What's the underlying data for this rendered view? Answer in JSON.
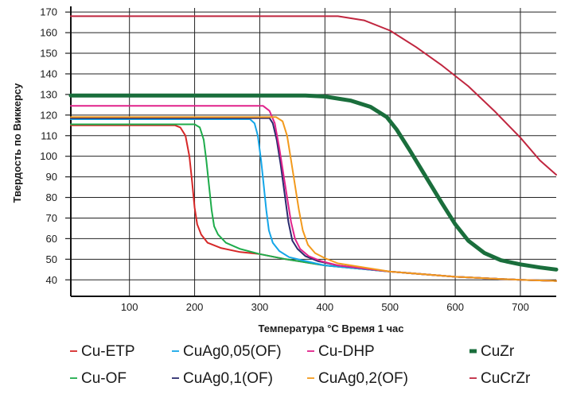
{
  "chart_data": {
    "type": "line",
    "title": "",
    "xlabel": "Температура °C Время 1 час",
    "ylabel": "Твердость по Виккерсу",
    "xlim": [
      10,
      755
    ],
    "ylim": [
      32,
      172
    ],
    "xticks": [
      100,
      200,
      300,
      400,
      500,
      600,
      700
    ],
    "yticks": [
      40,
      50,
      60,
      70,
      80,
      90,
      100,
      110,
      120,
      130,
      140,
      150,
      160,
      170
    ],
    "grid": true,
    "legend_position": "bottom",
    "series": [
      {
        "name": "Cu-ETP",
        "color": "#d62828",
        "width": 2,
        "points": [
          [
            10,
            115
          ],
          [
            170,
            115
          ],
          [
            178,
            114
          ],
          [
            186,
            110
          ],
          [
            192,
            100
          ],
          [
            196,
            88
          ],
          [
            200,
            75
          ],
          [
            204,
            67
          ],
          [
            210,
            62
          ],
          [
            220,
            58
          ],
          [
            240,
            55.5
          ],
          [
            270,
            53.5
          ],
          [
            300,
            52.5
          ],
          [
            340,
            50
          ],
          [
            400,
            47
          ],
          [
            500,
            44
          ],
          [
            600,
            41.5
          ],
          [
            700,
            40
          ],
          [
            755,
            39.5
          ]
        ]
      },
      {
        "name": "Cu-OF",
        "color": "#1eac4b",
        "width": 2,
        "points": [
          [
            10,
            115.5
          ],
          [
            200,
            115.5
          ],
          [
            208,
            114
          ],
          [
            214,
            108
          ],
          [
            218,
            98
          ],
          [
            222,
            86
          ],
          [
            226,
            74
          ],
          [
            230,
            66
          ],
          [
            236,
            62
          ],
          [
            248,
            58
          ],
          [
            270,
            55
          ],
          [
            300,
            52.5
          ],
          [
            340,
            50
          ],
          [
            400,
            47
          ],
          [
            500,
            44
          ],
          [
            600,
            41.5
          ],
          [
            700,
            40
          ],
          [
            755,
            39.5
          ]
        ]
      },
      {
        "name": "CuAg0,05(OF)",
        "color": "#14a6e8",
        "width": 2,
        "points": [
          [
            10,
            118
          ],
          [
            285,
            118
          ],
          [
            292,
            116
          ],
          [
            297,
            110
          ],
          [
            302,
            98
          ],
          [
            306,
            86
          ],
          [
            310,
            74
          ],
          [
            314,
            64
          ],
          [
            320,
            58
          ],
          [
            330,
            54
          ],
          [
            345,
            51
          ],
          [
            365,
            49.5
          ],
          [
            400,
            47
          ],
          [
            500,
            44
          ],
          [
            600,
            41.5
          ],
          [
            700,
            40
          ],
          [
            755,
            39.5
          ]
        ]
      },
      {
        "name": "CuAg0,1(OF)",
        "color": "#2a2a6e",
        "width": 2,
        "points": [
          [
            10,
            118.5
          ],
          [
            315,
            118.5
          ],
          [
            320,
            116
          ],
          [
            326,
            108
          ],
          [
            332,
            96
          ],
          [
            338,
            82
          ],
          [
            344,
            68
          ],
          [
            350,
            59
          ],
          [
            358,
            55
          ],
          [
            370,
            51.5
          ],
          [
            390,
            49
          ],
          [
            420,
            47
          ],
          [
            500,
            44
          ],
          [
            600,
            41.5
          ],
          [
            700,
            40
          ],
          [
            755,
            39.5
          ]
        ]
      },
      {
        "name": "Cu-DHP",
        "color": "#e0228b",
        "width": 2,
        "points": [
          [
            10,
            124.5
          ],
          [
            305,
            124.5
          ],
          [
            315,
            122
          ],
          [
            323,
            116
          ],
          [
            330,
            104
          ],
          [
            336,
            92
          ],
          [
            342,
            80
          ],
          [
            348,
            68
          ],
          [
            354,
            60
          ],
          [
            362,
            55
          ],
          [
            375,
            51.5
          ],
          [
            395,
            49
          ],
          [
            420,
            47
          ],
          [
            500,
            44
          ],
          [
            600,
            41.5
          ],
          [
            700,
            40
          ],
          [
            755,
            39.5
          ]
        ]
      },
      {
        "name": "CuAg0,2(OF)",
        "color": "#f39a1c",
        "width": 2,
        "points": [
          [
            10,
            119
          ],
          [
            325,
            119
          ],
          [
            335,
            117
          ],
          [
            342,
            110
          ],
          [
            348,
            98
          ],
          [
            354,
            86
          ],
          [
            360,
            74
          ],
          [
            366,
            64
          ],
          [
            374,
            57
          ],
          [
            385,
            53
          ],
          [
            400,
            50.5
          ],
          [
            420,
            48
          ],
          [
            500,
            44
          ],
          [
            600,
            41.5
          ],
          [
            700,
            40
          ],
          [
            755,
            39.5
          ]
        ]
      },
      {
        "name": "CuZr",
        "color": "#1a6e3c",
        "width": 5,
        "points": [
          [
            10,
            129.5
          ],
          [
            370,
            129.5
          ],
          [
            400,
            129
          ],
          [
            440,
            127
          ],
          [
            470,
            124
          ],
          [
            495,
            119
          ],
          [
            510,
            113
          ],
          [
            530,
            103
          ],
          [
            555,
            90
          ],
          [
            580,
            77
          ],
          [
            600,
            67
          ],
          [
            620,
            59
          ],
          [
            645,
            53
          ],
          [
            670,
            49.5
          ],
          [
            700,
            47.5
          ],
          [
            730,
            46
          ],
          [
            755,
            45
          ]
        ]
      },
      {
        "name": "CuCrZr",
        "color": "#c0263f",
        "width": 2,
        "points": [
          [
            10,
            168
          ],
          [
            420,
            168
          ],
          [
            460,
            166
          ],
          [
            500,
            161
          ],
          [
            540,
            153
          ],
          [
            580,
            144
          ],
          [
            620,
            134
          ],
          [
            660,
            122
          ],
          [
            700,
            109
          ],
          [
            730,
            98
          ],
          [
            755,
            91
          ]
        ]
      }
    ]
  },
  "legend": {
    "items": [
      {
        "name": "Cu-ETP",
        "color": "#d62828"
      },
      {
        "name": "CuAg0,05(OF)",
        "color": "#14a6e8"
      },
      {
        "name": "Cu-DHP",
        "color": "#e0228b"
      },
      {
        "name": "CuZr",
        "color": "#1a6e3c"
      },
      {
        "name": "Cu-OF",
        "color": "#1eac4b"
      },
      {
        "name": "CuAg0,1(OF)",
        "color": "#2a2a6e"
      },
      {
        "name": "CuAg0,2(OF)",
        "color": "#f39a1c"
      },
      {
        "name": "CuCrZr",
        "color": "#c0263f"
      }
    ]
  }
}
